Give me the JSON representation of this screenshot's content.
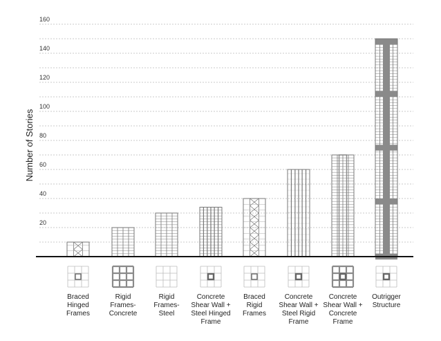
{
  "chart_data": {
    "type": "bar",
    "ylabel": "Number of Stories",
    "ylim": [
      0,
      160
    ],
    "yticks": [
      20,
      40,
      60,
      80,
      100,
      120,
      140,
      160
    ],
    "grid": true,
    "categories": [
      [
        "Braced",
        "Hinged",
        "Frames"
      ],
      [
        "Rigid",
        "Frames-",
        "Concrete"
      ],
      [
        "Rigid",
        "Frames-",
        "Steel"
      ],
      [
        "Concrete",
        "Shear Wall +",
        "Steel Hinged",
        "Frame"
      ],
      [
        "Braced",
        "Rigid",
        "Frames"
      ],
      [
        "Concrete",
        "Shear Wall +",
        "Steel Rigid",
        "Frame"
      ],
      [
        "Concrete",
        "Shear Wall +",
        "Concrete",
        "Frame"
      ],
      [
        "Outrigger",
        "Structure"
      ]
    ],
    "values": [
      10,
      20,
      30,
      34,
      40,
      60,
      70,
      150
    ],
    "colors": {
      "frame": "#777777",
      "core": "#8a8a8a",
      "grid": "#c8c8c8",
      "axis": "#111111"
    }
  }
}
